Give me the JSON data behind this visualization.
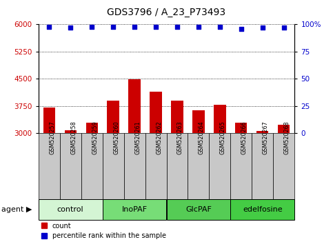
{
  "title": "GDS3796 / A_23_P73493",
  "samples": [
    "GSM520257",
    "GSM520258",
    "GSM520259",
    "GSM520260",
    "GSM520261",
    "GSM520262",
    "GSM520263",
    "GSM520264",
    "GSM520265",
    "GSM520266",
    "GSM520267",
    "GSM520268"
  ],
  "counts": [
    3700,
    3080,
    3280,
    3900,
    4480,
    4150,
    3900,
    3630,
    3770,
    3280,
    3050,
    3230
  ],
  "percentiles": [
    98,
    97,
    98,
    98,
    98,
    98,
    98,
    98,
    98,
    96,
    97,
    97
  ],
  "ylim_left": [
    3000,
    6000
  ],
  "ylim_right": [
    0,
    100
  ],
  "yticks_left": [
    3000,
    3750,
    4500,
    5250,
    6000
  ],
  "yticks_right": [
    0,
    25,
    50,
    75,
    100
  ],
  "bar_color": "#cc0000",
  "dot_color": "#0000cc",
  "groups": [
    {
      "label": "control",
      "start": 0,
      "end": 3,
      "color": "#d4f5d4"
    },
    {
      "label": "InoPAF",
      "start": 3,
      "end": 6,
      "color": "#77dd77"
    },
    {
      "label": "GlcPAF",
      "start": 6,
      "end": 9,
      "color": "#55cc55"
    },
    {
      "label": "edelfosine",
      "start": 9,
      "end": 12,
      "color": "#44cc44"
    }
  ],
  "agent_label": "agent",
  "legend_count_label": "count",
  "legend_percentile_label": "percentile rank within the sample",
  "bar_bottom": 3000,
  "tick_label_color_left": "#cc0000",
  "tick_label_color_right": "#0000cc",
  "sample_cell_color": "#c8c8c8",
  "plot_bg": "#ffffff",
  "fig_width": 4.83,
  "fig_height": 3.54,
  "dpi": 100
}
